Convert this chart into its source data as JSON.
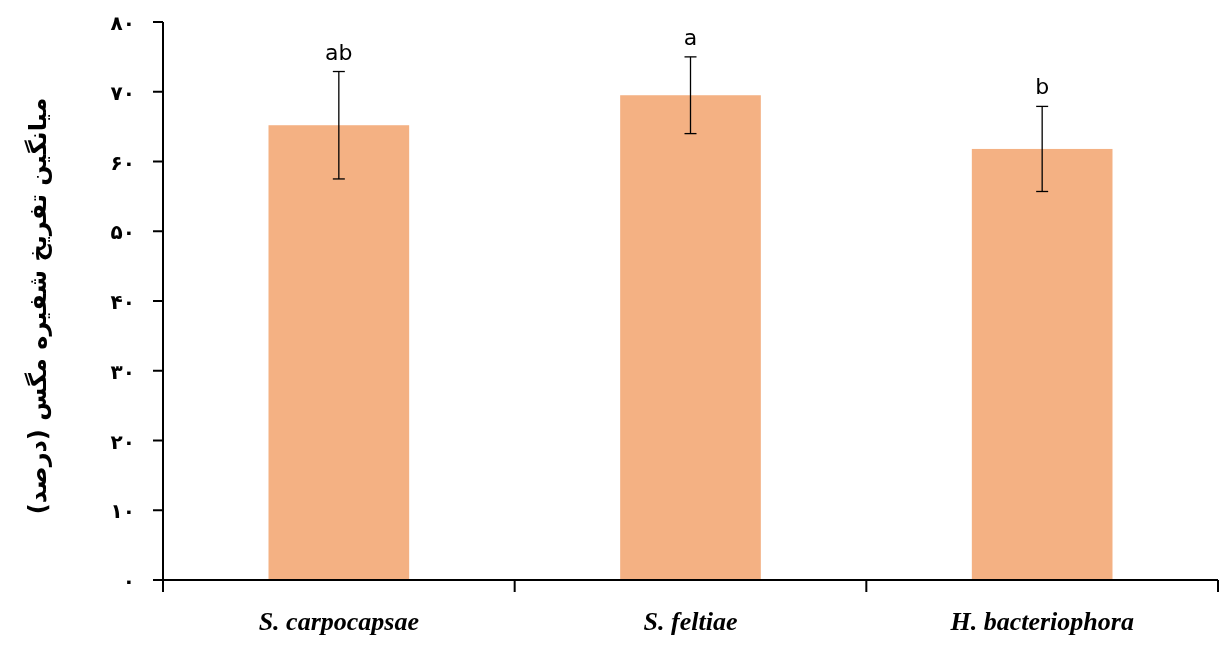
{
  "chart_data": {
    "type": "bar",
    "ylabel": "میانگین تفریخ شفیره مگس (درصد)",
    "categories": [
      "S. carpocapsae",
      "S. feltiae",
      "H. bacteriophora"
    ],
    "values": [
      65.2,
      69.5,
      61.8
    ],
    "errors": [
      7.7,
      5.5,
      6.1
    ],
    "color": "#f4b183",
    "ylim": [
      0,
      80
    ],
    "yticks": [
      {
        "value": 0,
        "label": "۰"
      },
      {
        "value": 10,
        "label": "۱۰"
      },
      {
        "value": 20,
        "label": "۲۰"
      },
      {
        "value": 30,
        "label": "۳۰"
      },
      {
        "value": 40,
        "label": "۴۰"
      },
      {
        "value": 50,
        "label": "۵۰"
      },
      {
        "value": 60,
        "label": "۶۰"
      },
      {
        "value": 70,
        "label": "۷۰"
      },
      {
        "value": 80,
        "label": "۸۰"
      }
    ],
    "annotations": [
      {
        "text": "ab",
        "x": "S. carpocapsae",
        "y": 72.9
      },
      {
        "text": "a",
        "x": "S. feltiae",
        "y": 75.0
      },
      {
        "text": "b",
        "x": "H. bacteriophora",
        "y": 67.9
      }
    ],
    "grid": false
  }
}
